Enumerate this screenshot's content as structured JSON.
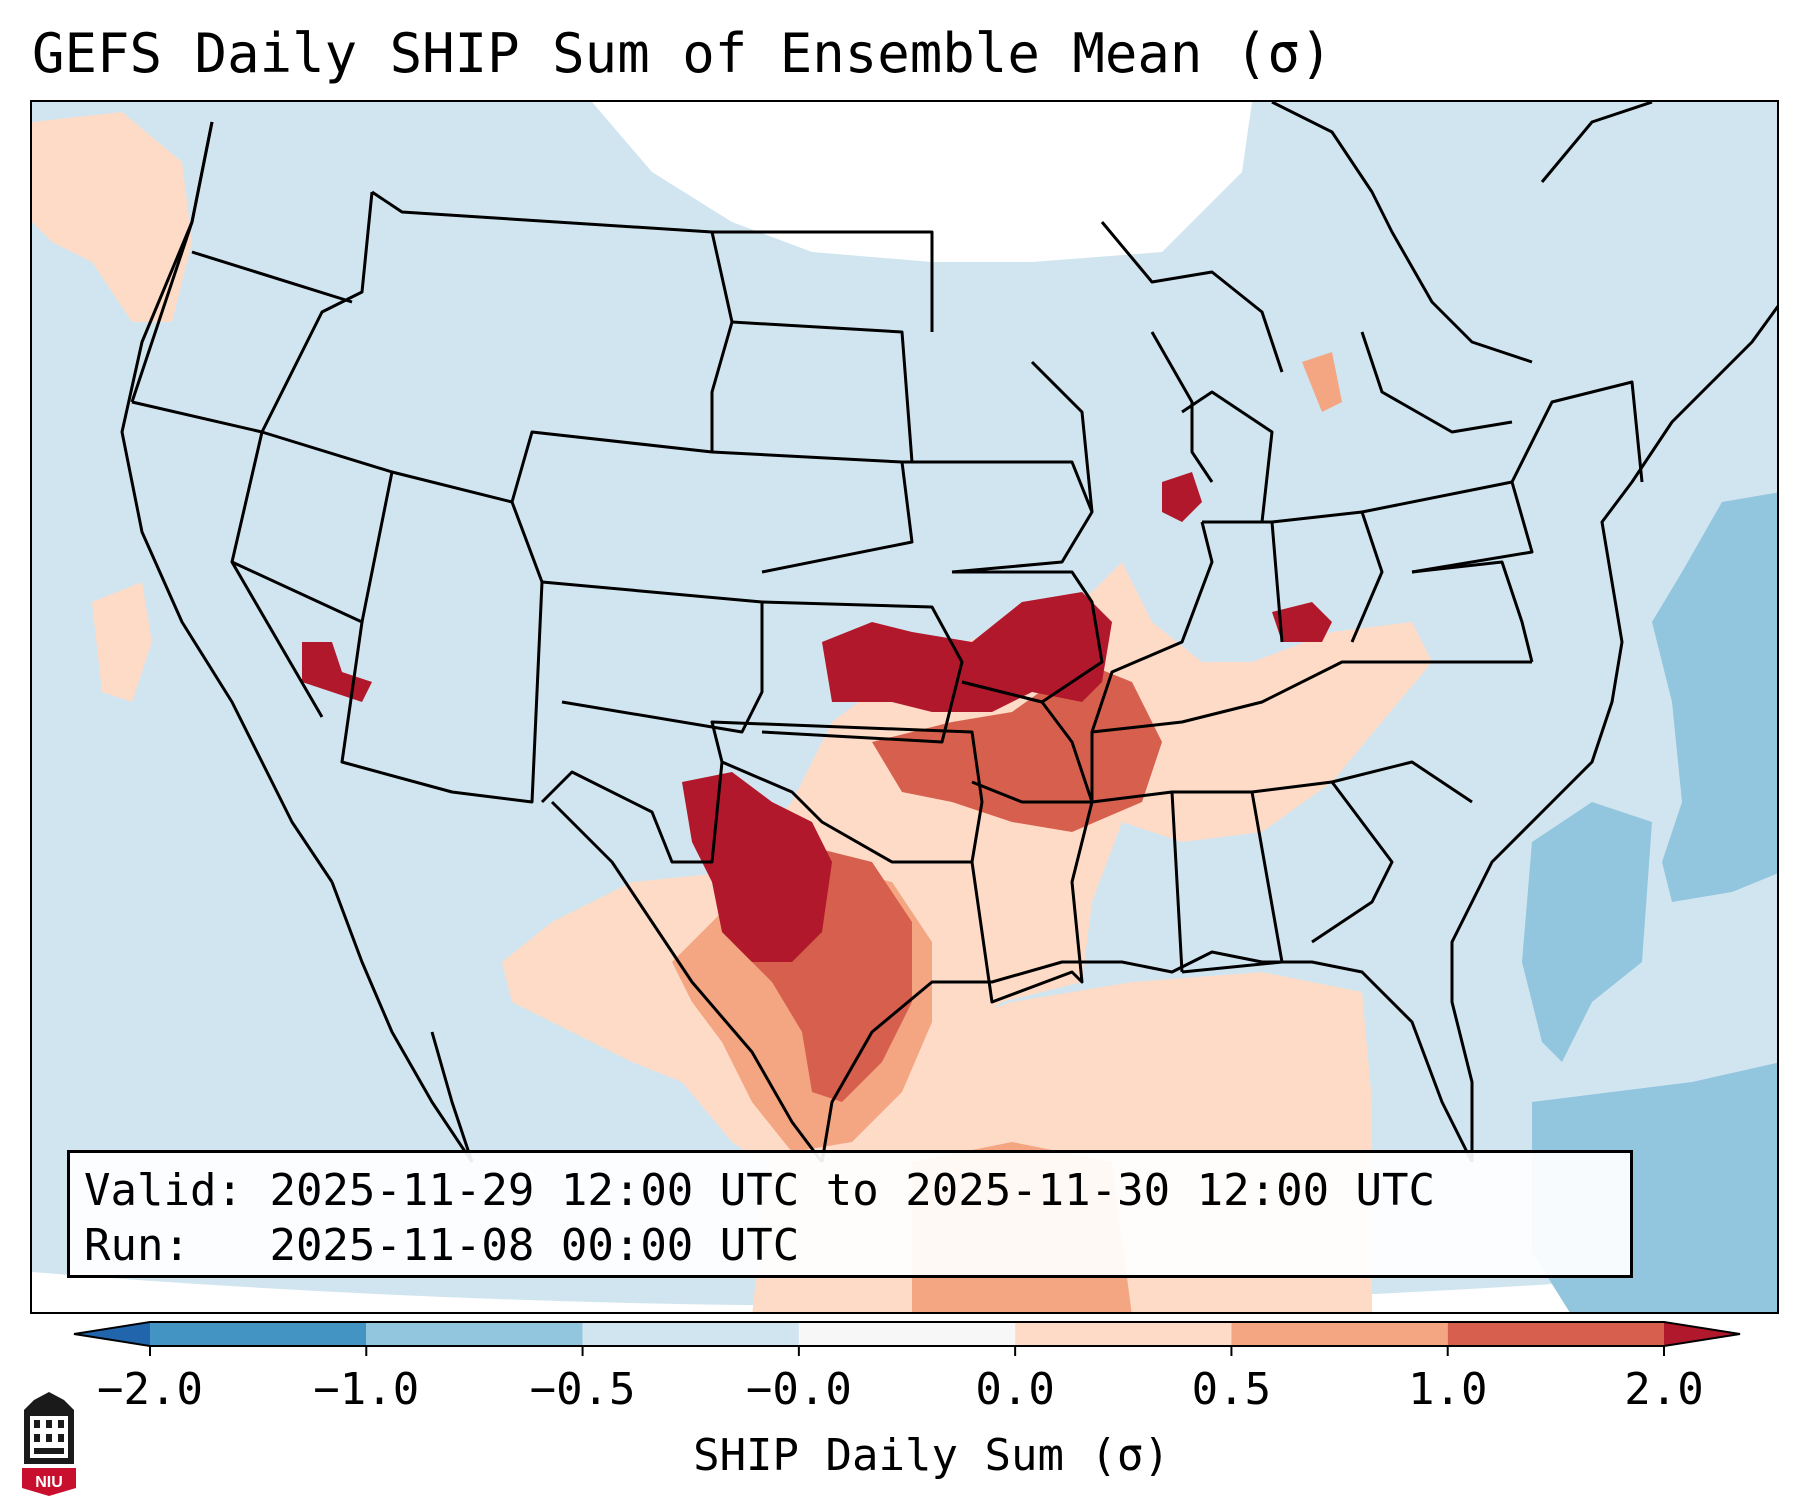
{
  "title": "GEFS Daily SHIP Sum of Ensemble Mean (σ)",
  "info": {
    "valid_label": "Valid:",
    "valid_value": "2025-11-29 12:00 UTC to 2025-11-30 12:00 UTC",
    "run_label": "Run:",
    "run_value": "2025-11-08 00:00 UTC"
  },
  "colorbar": {
    "label": "SHIP Daily Sum (σ)",
    "ticks": [
      "−2.0",
      "−1.0",
      "−0.5",
      "−0.0",
      "0.0",
      "0.5",
      "1.0",
      "2.0"
    ],
    "bins": [
      {
        "from": null,
        "to": -2.0,
        "color": "#2166ac"
      },
      {
        "from": -2.0,
        "to": -1.0,
        "color": "#4393c3"
      },
      {
        "from": -1.0,
        "to": -0.5,
        "color": "#92c5de"
      },
      {
        "from": -0.5,
        "to": -0.0,
        "color": "#d1e5f0"
      },
      {
        "from": -0.0,
        "to": 0.0,
        "color": "#f7f7f7"
      },
      {
        "from": 0.0,
        "to": 0.5,
        "color": "#fddbc7"
      },
      {
        "from": 0.5,
        "to": 1.0,
        "color": "#f4a582"
      },
      {
        "from": 1.0,
        "to": 2.0,
        "color": "#d6604d"
      },
      {
        "from": 2.0,
        "to": null,
        "color": "#b2182b"
      }
    ]
  },
  "logo": {
    "text": "NIU",
    "colors": {
      "red": "#c8102e",
      "black": "#1a1a1a"
    }
  },
  "map": {
    "projection": "Lambert conformal, CONUS",
    "background_color": "#d1e5f0",
    "outside_domain_color": "#ffffff",
    "features": [
      "state boundaries",
      "coastlines",
      "country borders"
    ],
    "areas": [
      {
        "region": "Northern Plains / Dakotas and southern Canada",
        "class": "-0.0 to 0.0",
        "color": "#f7f7f7"
      },
      {
        "region": "Kansas / Missouri / Iowa",
        "class": "> 2.0",
        "color": "#b2182b"
      },
      {
        "region": "Oklahoma / Texas panhandle",
        "class": "> 2.0",
        "color": "#b2182b"
      },
      {
        "region": "Central Texas",
        "class": "1.0 to 2.0",
        "color": "#d6604d"
      },
      {
        "region": "Gulf of Mexico",
        "class": "0.0 to 0.5",
        "color": "#fddbc7"
      },
      {
        "region": "Western Atlantic",
        "class": "-1.0 to -0.5",
        "color": "#92c5de"
      },
      {
        "region": "Central Indiana / Ohio",
        "class": "> 2.0",
        "color": "#b2182b"
      },
      {
        "region": "Northern California coast",
        "class": "0.0 to 0.5",
        "color": "#fddbc7"
      }
    ]
  }
}
